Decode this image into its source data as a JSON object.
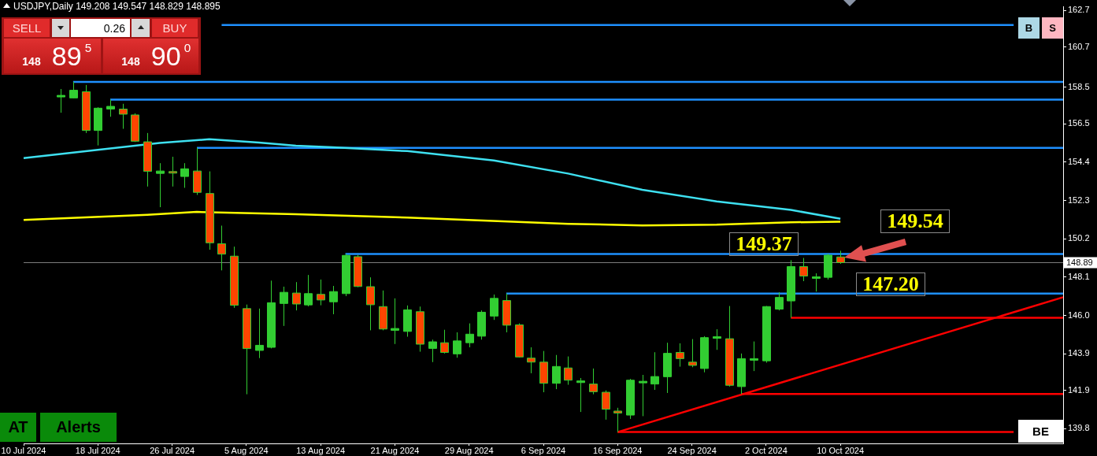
{
  "chart_data": {
    "type": "candlestick",
    "title": "USDJPY,Daily  149.208 149.547 148.829 148.895",
    "categories": [
      "10 Jul 2024",
      null,
      null,
      null,
      null,
      null,
      "18 Jul 2024",
      null,
      null,
      null,
      null,
      null,
      "26 Jul 2024",
      null,
      null,
      null,
      null,
      null,
      "5 Aug 2024",
      null,
      null,
      null,
      null,
      null,
      "13 Aug 2024",
      null,
      null,
      null,
      null,
      null,
      "21 Aug 2024",
      null,
      null,
      null,
      null,
      null,
      "29 Aug 2024",
      null,
      null,
      null,
      null,
      null,
      "6 Sep 2024",
      null,
      null,
      null,
      null,
      null,
      "16 Sep 2024",
      null,
      null,
      null,
      null,
      null,
      "24 Sep 2024",
      null,
      null,
      null,
      null,
      null,
      "2 Oct 2024",
      null,
      null,
      null,
      null,
      null,
      "10 Oct 2024",
      null,
      null,
      null,
      null,
      null,
      null,
      null,
      null,
      null,
      null,
      null,
      null,
      null,
      null,
      null,
      null,
      null,
      null
    ],
    "ylim": [
      139.0,
      162.9
    ],
    "yticks": [
      162.7,
      160.7,
      158.5,
      156.5,
      154.4,
      152.3,
      150.2,
      148.1,
      {
        "value": 146.0,
        "label": "146.0"
      },
      143.9,
      141.9,
      139.8
    ],
    "grid": false,
    "legend": false,
    "ref_lines": [
      {
        "axis": "y",
        "value": 148.895,
        "label": "148.89",
        "color": "#808080"
      }
    ],
    "annotations": [
      "SELL",
      "0.26",
      "BUY",
      "148",
      "89$^{5}$",
      "148",
      "90$^{0}$",
      "B",
      "S",
      "AT",
      "Alerts",
      "BE",
      "149.37",
      "149.54",
      "147.20"
    ],
    "series": [
      {
        "type": "line",
        "color": "#3ee0f0",
        "values": [
          154.62,
          null,
          null,
          null,
          null,
          null,
          null,
          null,
          null,
          null,
          null,
          155.45,
          null,
          null,
          null,
          155.65,
          null,
          null,
          null,
          155.47,
          null,
          null,
          155.3,
          null,
          null,
          155.21,
          null,
          null,
          null,
          null,
          null,
          155.0,
          null,
          null,
          null,
          null,
          null,
          null,
          154.49,
          null,
          null,
          null,
          null,
          null,
          153.77,
          null,
          null,
          null,
          null,
          null,
          152.88,
          null,
          null,
          null,
          null,
          null,
          152.25,
          null,
          null,
          null,
          null,
          null,
          151.78,
          null,
          null,
          null,
          151.3,
          null,
          null,
          null,
          null,
          null,
          null,
          null,
          null,
          null,
          null,
          null,
          null,
          null,
          null,
          null,
          null,
          null,
          null
        ]
      },
      {
        "type": "line",
        "color": "#ffff00",
        "values": [
          151.23,
          null,
          null,
          null,
          null,
          null,
          null,
          null,
          null,
          null,
          151.51,
          null,
          null,
          null,
          151.67,
          null,
          null,
          null,
          null,
          null,
          null,
          null,
          151.55,
          null,
          null,
          null,
          null,
          null,
          null,
          null,
          null,
          151.36,
          null,
          null,
          null,
          null,
          null,
          null,
          null,
          null,
          null,
          null,
          null,
          null,
          151.02,
          null,
          null,
          null,
          null,
          null,
          150.93,
          null,
          null,
          null,
          null,
          null,
          150.97,
          null,
          null,
          null,
          null,
          null,
          151.1,
          null,
          null,
          null,
          151.14,
          null,
          null,
          null,
          null,
          null,
          null,
          null,
          null,
          null,
          null,
          null,
          null,
          null,
          null,
          null,
          null,
          null,
          null
        ]
      },
      {
        "type": "line",
        "color": "#1e90ff",
        "values": [
          null,
          null,
          null,
          null,
          null,
          null,
          null,
          null,
          null,
          null,
          null,
          null,
          null,
          null,
          null,
          null,
          161.9,
          null,
          null,
          null,
          null,
          null,
          null,
          null,
          null,
          null,
          null,
          null,
          null,
          null,
          null,
          null,
          null,
          null,
          null,
          null,
          null,
          null,
          null,
          null,
          null,
          null,
          null,
          null,
          null,
          null,
          null,
          null,
          null,
          null,
          null,
          null,
          null,
          null,
          null,
          null,
          null,
          null,
          null,
          null,
          null,
          null,
          null,
          null,
          null,
          null,
          null,
          null,
          null,
          null,
          null,
          null,
          null,
          null,
          null,
          null,
          null,
          null,
          null,
          null,
          161.9,
          null,
          null,
          null,
          null
        ]
      },
      {
        "type": "line",
        "color": "#1e90ff",
        "values": [
          null,
          null,
          null,
          null,
          158.79,
          null,
          null,
          null,
          null,
          null,
          null,
          null,
          null,
          null,
          null,
          null,
          null,
          null,
          null,
          null,
          null,
          null,
          null,
          null,
          null,
          null,
          null,
          null,
          null,
          null,
          null,
          null,
          null,
          null,
          null,
          null,
          null,
          null,
          null,
          null,
          null,
          null,
          null,
          null,
          null,
          null,
          null,
          null,
          null,
          null,
          null,
          null,
          null,
          null,
          null,
          null,
          null,
          null,
          null,
          null,
          null,
          null,
          null,
          null,
          null,
          null,
          null,
          null,
          null,
          null,
          null,
          null,
          null,
          null,
          null,
          null,
          null,
          null,
          null,
          null,
          null,
          null,
          null,
          null,
          158.79
        ]
      },
      {
        "type": "line",
        "color": "#1e90ff",
        "values": [
          null,
          null,
          null,
          null,
          null,
          null,
          null,
          157.82,
          null,
          null,
          null,
          null,
          null,
          null,
          null,
          null,
          null,
          null,
          null,
          null,
          null,
          null,
          null,
          null,
          null,
          null,
          null,
          null,
          null,
          null,
          null,
          null,
          null,
          null,
          null,
          null,
          null,
          null,
          null,
          null,
          null,
          null,
          null,
          null,
          null,
          null,
          null,
          null,
          null,
          null,
          null,
          null,
          null,
          null,
          null,
          null,
          null,
          null,
          null,
          null,
          null,
          null,
          null,
          null,
          null,
          null,
          null,
          null,
          null,
          null,
          null,
          null,
          null,
          null,
          null,
          null,
          null,
          null,
          null,
          null,
          null,
          null,
          null,
          null,
          157.82
        ]
      },
      {
        "type": "line",
        "color": "#1e90ff",
        "values": [
          null,
          null,
          null,
          null,
          null,
          null,
          null,
          null,
          null,
          null,
          null,
          null,
          null,
          null,
          155.18,
          null,
          null,
          null,
          null,
          null,
          null,
          null,
          null,
          null,
          null,
          null,
          null,
          null,
          null,
          null,
          null,
          null,
          null,
          null,
          null,
          null,
          null,
          null,
          null,
          null,
          null,
          null,
          null,
          null,
          null,
          null,
          null,
          null,
          null,
          null,
          null,
          null,
          null,
          null,
          null,
          null,
          null,
          null,
          null,
          null,
          null,
          null,
          null,
          null,
          null,
          null,
          null,
          null,
          null,
          null,
          null,
          null,
          null,
          null,
          null,
          null,
          null,
          null,
          null,
          null,
          null,
          null,
          null,
          null,
          155.18
        ]
      },
      {
        "type": "line",
        "color": "#1e90ff",
        "values": [
          null,
          null,
          null,
          null,
          null,
          null,
          null,
          null,
          null,
          null,
          null,
          null,
          null,
          null,
          null,
          null,
          null,
          null,
          null,
          null,
          null,
          null,
          null,
          null,
          null,
          null,
          149.37,
          null,
          null,
          null,
          null,
          null,
          null,
          null,
          null,
          null,
          null,
          null,
          null,
          null,
          null,
          null,
          null,
          null,
          null,
          null,
          null,
          null,
          null,
          null,
          null,
          null,
          null,
          null,
          null,
          null,
          null,
          null,
          null,
          null,
          null,
          null,
          null,
          null,
          null,
          null,
          null,
          null,
          null,
          null,
          null,
          null,
          null,
          null,
          null,
          null,
          null,
          null,
          null,
          null,
          null,
          null,
          null,
          null,
          149.37
        ]
      },
      {
        "type": "line",
        "color": "#1e90ff",
        "values": [
          null,
          null,
          null,
          null,
          null,
          null,
          null,
          null,
          null,
          null,
          null,
          null,
          null,
          null,
          null,
          null,
          null,
          null,
          null,
          null,
          null,
          null,
          null,
          null,
          null,
          null,
          null,
          null,
          null,
          null,
          null,
          null,
          null,
          null,
          null,
          null,
          null,
          null,
          null,
          147.2,
          null,
          null,
          null,
          null,
          null,
          null,
          null,
          null,
          null,
          null,
          null,
          null,
          null,
          null,
          null,
          null,
          null,
          null,
          null,
          null,
          null,
          null,
          null,
          null,
          null,
          null,
          null,
          null,
          null,
          null,
          null,
          null,
          null,
          null,
          null,
          null,
          null,
          null,
          null,
          null,
          null,
          null,
          null,
          null,
          147.2
        ]
      },
      {
        "type": "line",
        "color": "#ff0000",
        "values": [
          null,
          null,
          null,
          null,
          null,
          null,
          null,
          null,
          null,
          null,
          null,
          null,
          null,
          null,
          null,
          null,
          null,
          null,
          null,
          null,
          null,
          null,
          null,
          null,
          null,
          null,
          null,
          null,
          null,
          null,
          null,
          null,
          null,
          null,
          null,
          null,
          null,
          null,
          null,
          null,
          null,
          null,
          null,
          null,
          null,
          null,
          null,
          null,
          null,
          null,
          null,
          null,
          null,
          null,
          null,
          null,
          null,
          null,
          null,
          null,
          null,
          null,
          145.88,
          null,
          null,
          null,
          null,
          null,
          null,
          null,
          null,
          null,
          null,
          null,
          null,
          null,
          null,
          null,
          null,
          null,
          null,
          null,
          null,
          null,
          145.88
        ]
      },
      {
        "type": "line",
        "color": "#ff0000",
        "values": [
          null,
          null,
          null,
          null,
          null,
          null,
          null,
          null,
          null,
          null,
          null,
          null,
          null,
          null,
          null,
          null,
          null,
          null,
          null,
          null,
          null,
          null,
          null,
          null,
          null,
          null,
          null,
          null,
          null,
          null,
          null,
          null,
          null,
          null,
          null,
          null,
          null,
          null,
          null,
          null,
          null,
          null,
          null,
          null,
          null,
          null,
          null,
          null,
          null,
          null,
          null,
          null,
          null,
          null,
          null,
          null,
          null,
          null,
          141.7,
          null,
          null,
          null,
          null,
          null,
          null,
          null,
          null,
          null,
          null,
          null,
          null,
          null,
          null,
          null,
          null,
          null,
          null,
          null,
          null,
          null,
          null,
          null,
          null,
          null,
          141.7
        ]
      },
      {
        "type": "line",
        "color": "#ff0000",
        "values": [
          null,
          null,
          null,
          null,
          null,
          null,
          null,
          null,
          null,
          null,
          null,
          null,
          null,
          null,
          null,
          null,
          null,
          null,
          null,
          null,
          null,
          null,
          null,
          null,
          null,
          null,
          null,
          null,
          null,
          null,
          null,
          null,
          null,
          null,
          null,
          null,
          null,
          null,
          null,
          null,
          null,
          null,
          null,
          null,
          null,
          null,
          null,
          null,
          139.62,
          null,
          null,
          null,
          null,
          null,
          null,
          null,
          null,
          null,
          null,
          null,
          null,
          null,
          null,
          null,
          null,
          null,
          null,
          null,
          null,
          null,
          null,
          null,
          null,
          null,
          null,
          null,
          null,
          null,
          null,
          null,
          139.62,
          null,
          null,
          null,
          null
        ]
      },
      {
        "type": "line",
        "color": "#ff0000",
        "values": [
          null,
          null,
          null,
          null,
          null,
          null,
          null,
          null,
          null,
          null,
          null,
          null,
          null,
          null,
          null,
          null,
          null,
          null,
          null,
          null,
          null,
          null,
          null,
          null,
          null,
          null,
          null,
          null,
          null,
          null,
          null,
          null,
          null,
          null,
          null,
          null,
          null,
          null,
          null,
          null,
          null,
          null,
          null,
          null,
          null,
          null,
          null,
          null,
          139.62,
          null,
          null,
          null,
          null,
          null,
          null,
          null,
          null,
          null,
          null,
          null,
          null,
          null,
          null,
          null,
          null,
          null,
          null,
          null,
          null,
          null,
          null,
          null,
          null,
          null,
          null,
          null,
          null,
          null,
          null,
          null,
          null,
          null,
          null,
          null,
          147.0
        ]
      },
      {
        "color": "#32cd32",
        "colors": [
          null,
          null,
          null,
          "#32cd32",
          "#32cd32",
          "#ff4500",
          "#32cd32",
          "#32cd32",
          "#ff4500",
          "#ff4500",
          "#ff4500",
          "#32cd32",
          "#ff4500",
          "#32cd32",
          "#ff4500",
          "#ff4500",
          "#ff4500",
          "#ff4500",
          "#ff4500",
          "#32cd32",
          "#32cd32",
          "#32cd32",
          "#ff4500",
          "#32cd32",
          "#ff4500",
          "#32cd32",
          "#32cd32",
          "#ff4500",
          "#ff4500",
          "#ff4500",
          "#32cd32",
          "#32cd32",
          "#ff4500",
          "#32cd32",
          "#ff4500",
          "#32cd32",
          "#32cd32",
          "#32cd32",
          "#32cd32",
          "#ff4500",
          "#ff4500",
          "#ff4500",
          "#ff4500",
          "#32cd32",
          "#ff4500",
          "#32cd32",
          "#ff4500",
          "#ff4500",
          "#ff4500",
          "#32cd32",
          "#32cd32",
          "#32cd32",
          "#32cd32",
          "#ff4500",
          "#ff4500",
          "#32cd32",
          "#32cd32",
          "#ff4500",
          "#32cd32",
          "#32cd32",
          "#32cd32",
          "#32cd32",
          "#32cd32",
          "#ff4500",
          "#32cd32",
          "#32cd32",
          "#ff4500",
          null,
          null,
          null,
          null,
          null,
          null,
          null,
          null,
          null,
          null,
          null,
          null,
          null,
          null,
          null,
          null,
          null,
          null
        ],
        "ohlc": [
          null,
          null,
          null,
          [
            158.0,
            158.4,
            157.1,
            158.05
          ],
          [
            157.91,
            158.79,
            157.9,
            158.33
          ],
          [
            158.25,
            158.62,
            155.99,
            156.13
          ],
          [
            156.13,
            157.4,
            155.31,
            157.35
          ],
          [
            157.3,
            157.82,
            156.88,
            157.45
          ],
          [
            157.3,
            157.59,
            156.22,
            157.02
          ],
          [
            156.98,
            157.07,
            155.5,
            155.54
          ],
          [
            155.51,
            155.99,
            153.06,
            153.89
          ],
          [
            153.78,
            154.34,
            151.93,
            153.91
          ],
          [
            153.88,
            154.69,
            153.06,
            153.8
          ],
          [
            153.61,
            154.34,
            152.99,
            154.03
          ],
          [
            153.91,
            155.18,
            152.6,
            152.74
          ],
          [
            152.68,
            153.89,
            149.6,
            149.98
          ],
          [
            149.93,
            150.92,
            148.47,
            149.36
          ],
          [
            149.25,
            149.77,
            146.42,
            146.56
          ],
          [
            146.38,
            146.6,
            141.69,
            144.19
          ],
          [
            144.09,
            146.38,
            143.67,
            144.37
          ],
          [
            144.26,
            147.91,
            144.2,
            146.7
          ],
          [
            146.66,
            147.58,
            145.43,
            147.27
          ],
          [
            147.23,
            147.83,
            146.28,
            146.63
          ],
          [
            146.58,
            148.22,
            146.5,
            147.2
          ],
          [
            147.16,
            147.97,
            146.56,
            146.85
          ],
          [
            146.75,
            147.62,
            146.07,
            147.31
          ],
          [
            147.2,
            149.37,
            147.06,
            149.29
          ],
          [
            149.22,
            149.32,
            147.55,
            147.59
          ],
          [
            147.58,
            148.09,
            145.19,
            146.59
          ],
          [
            146.49,
            147.37,
            145.19,
            145.26
          ],
          [
            145.19,
            146.94,
            144.44,
            145.29
          ],
          [
            145.13,
            146.55,
            144.84,
            146.31
          ],
          [
            146.21,
            146.49,
            144.02,
            144.43
          ],
          [
            144.2,
            144.68,
            143.45,
            144.56
          ],
          [
            144.51,
            145.22,
            143.92,
            143.98
          ],
          [
            143.9,
            145.08,
            143.69,
            144.61
          ],
          [
            144.51,
            145.57,
            144.26,
            144.98
          ],
          [
            144.87,
            146.28,
            144.68,
            146.18
          ],
          [
            145.97,
            147.15,
            145.76,
            146.94
          ],
          [
            146.82,
            147.2,
            145.08,
            145.47
          ],
          [
            145.49,
            145.57,
            143.7,
            143.73
          ],
          [
            143.67,
            144.26,
            142.84,
            143.45
          ],
          [
            143.45,
            144.06,
            141.8,
            142.29
          ],
          [
            142.29,
            143.84,
            141.97,
            143.21
          ],
          [
            143.13,
            143.76,
            142.21,
            142.46
          ],
          [
            142.33,
            142.58,
            140.72,
            142.42
          ],
          [
            142.25,
            143.1,
            141.69,
            141.83
          ],
          [
            141.8,
            141.9,
            140.3,
            140.87
          ],
          [
            140.77,
            140.95,
            139.62,
            140.66
          ],
          [
            140.55,
            142.53,
            140.34,
            142.46
          ],
          [
            142.32,
            142.75,
            140.49,
            142.4
          ],
          [
            142.25,
            143.99,
            141.93,
            142.66
          ],
          [
            142.65,
            144.51,
            141.76,
            143.93
          ],
          [
            143.98,
            144.48,
            143.2,
            143.64
          ],
          [
            143.45,
            144.71,
            143.17,
            143.27
          ],
          [
            143.1,
            144.87,
            142.89,
            144.79
          ],
          [
            144.8,
            145.25,
            144.12,
            144.84
          ],
          [
            144.73,
            146.52,
            142.11,
            142.18
          ],
          [
            142.11,
            143.92,
            141.7,
            143.64
          ],
          [
            143.6,
            144.58,
            142.96,
            143.64
          ],
          [
            143.52,
            146.52,
            143.42,
            146.49
          ],
          [
            146.35,
            147.27,
            146.28,
            146.99
          ],
          [
            146.8,
            149.03,
            145.88,
            148.68
          ],
          [
            148.68,
            149.15,
            147.88,
            148.16
          ],
          [
            148.05,
            148.31,
            147.31,
            148.12
          ],
          [
            148.09,
            149.38,
            147.97,
            149.3
          ],
          [
            149.208,
            149.547,
            148.829,
            148.895
          ],
          null,
          null,
          null,
          null,
          null,
          null,
          null,
          null,
          null,
          null,
          null,
          null,
          null,
          null,
          null,
          null,
          null,
          null
        ]
      }
    ]
  }
}
